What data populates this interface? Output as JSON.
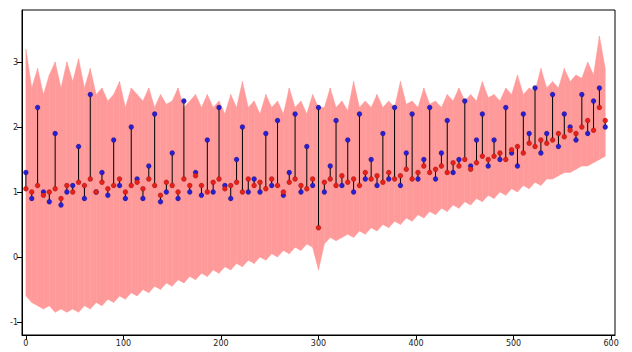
{
  "chart_data": {
    "type": "scatter",
    "x": [
      0,
      6,
      12,
      18,
      24,
      30,
      36,
      42,
      48,
      54,
      60,
      66,
      72,
      78,
      84,
      90,
      96,
      102,
      108,
      114,
      120,
      126,
      132,
      138,
      144,
      150,
      156,
      162,
      168,
      174,
      180,
      186,
      192,
      198,
      204,
      210,
      216,
      222,
      228,
      234,
      240,
      246,
      252,
      258,
      264,
      270,
      276,
      282,
      288,
      294,
      300,
      306,
      312,
      318,
      324,
      330,
      336,
      342,
      348,
      354,
      360,
      366,
      372,
      378,
      384,
      390,
      396,
      402,
      408,
      414,
      420,
      426,
      432,
      438,
      444,
      450,
      456,
      462,
      468,
      474,
      480,
      486,
      492,
      498,
      504,
      510,
      516,
      522,
      528,
      534,
      540,
      546,
      552,
      558,
      564,
      570,
      576,
      582,
      588,
      594
    ],
    "xlim": [
      -4,
      604
    ],
    "xticks": [
      0,
      100,
      200,
      300,
      400,
      500,
      600
    ],
    "ylim": [
      -1.2,
      3.8
    ],
    "yticks": [
      -1,
      0,
      1,
      2,
      3
    ],
    "grid": false,
    "series": [
      {
        "type": "band",
        "color": "#ff9a9a",
        "lower": [
          -0.6,
          -0.7,
          -0.75,
          -0.8,
          -0.75,
          -0.85,
          -0.8,
          -0.85,
          -0.8,
          -0.85,
          -0.75,
          -0.8,
          -0.7,
          -0.75,
          -0.65,
          -0.7,
          -0.6,
          -0.65,
          -0.55,
          -0.6,
          -0.5,
          -0.55,
          -0.45,
          -0.5,
          -0.4,
          -0.45,
          -0.35,
          -0.4,
          -0.3,
          -0.35,
          -0.25,
          -0.3,
          -0.2,
          -0.25,
          -0.15,
          -0.2,
          -0.1,
          -0.15,
          -0.05,
          -0.1,
          0.0,
          -0.05,
          0.05,
          0.0,
          0.1,
          0.05,
          0.15,
          0.1,
          0.2,
          0.15,
          -0.2,
          0.2,
          0.3,
          0.25,
          0.3,
          0.35,
          0.3,
          0.4,
          0.35,
          0.45,
          0.4,
          0.5,
          0.45,
          0.55,
          0.5,
          0.6,
          0.55,
          0.65,
          0.6,
          0.7,
          0.65,
          0.75,
          0.7,
          0.8,
          0.75,
          0.85,
          0.8,
          0.9,
          0.85,
          0.95,
          0.9,
          1.0,
          0.95,
          1.05,
          1.0,
          1.1,
          1.05,
          1.15,
          1.1,
          1.2,
          1.2,
          1.25,
          1.3,
          1.3,
          1.35,
          1.4,
          1.4,
          1.45,
          1.5,
          1.55
        ],
        "upper": [
          3.2,
          2.6,
          2.9,
          2.5,
          2.8,
          3.0,
          2.6,
          3.0,
          2.7,
          3.05,
          2.6,
          2.9,
          2.5,
          2.6,
          2.4,
          2.5,
          2.7,
          2.3,
          2.6,
          2.5,
          2.4,
          2.6,
          2.3,
          2.5,
          2.35,
          2.4,
          2.6,
          2.3,
          2.4,
          2.5,
          2.3,
          2.5,
          2.3,
          2.4,
          2.2,
          2.5,
          2.3,
          2.7,
          2.3,
          2.4,
          2.2,
          2.5,
          2.3,
          2.4,
          2.2,
          2.6,
          2.3,
          2.4,
          2.2,
          2.5,
          2.3,
          2.3,
          2.6,
          2.3,
          2.4,
          2.25,
          2.7,
          2.3,
          2.4,
          2.3,
          2.5,
          2.3,
          2.4,
          2.3,
          2.7,
          2.35,
          2.4,
          2.3,
          2.6,
          2.35,
          2.4,
          2.3,
          2.5,
          2.4,
          2.6,
          2.4,
          2.5,
          2.4,
          2.7,
          2.45,
          2.5,
          2.4,
          2.6,
          2.5,
          2.8,
          2.5,
          2.6,
          2.55,
          2.9,
          2.6,
          2.7,
          2.6,
          2.9,
          2.7,
          2.8,
          2.75,
          3.0,
          2.8,
          3.4,
          2.9
        ]
      },
      {
        "type": "scatter",
        "color": "#2a1fd0",
        "marker": "circle",
        "values": [
          1.3,
          0.9,
          2.3,
          1.0,
          0.85,
          1.9,
          0.8,
          1.0,
          1.1,
          1.7,
          0.9,
          2.5,
          1.0,
          1.3,
          0.95,
          1.8,
          1.1,
          0.9,
          2.0,
          1.2,
          0.9,
          1.4,
          2.2,
          0.85,
          1.0,
          1.6,
          0.9,
          2.4,
          1.0,
          1.3,
          0.95,
          1.8,
          1.0,
          2.3,
          1.1,
          0.9,
          1.5,
          2.0,
          1.0,
          1.2,
          1.0,
          1.9,
          1.1,
          2.1,
          0.95,
          1.3,
          2.2,
          1.0,
          1.7,
          1.1,
          2.3,
          1.0,
          1.4,
          2.1,
          1.1,
          1.8,
          1.0,
          2.2,
          1.2,
          1.5,
          1.1,
          1.9,
          1.2,
          2.3,
          1.1,
          1.6,
          2.2,
          1.2,
          1.5,
          2.3,
          1.2,
          1.6,
          2.1,
          1.3,
          1.5,
          2.4,
          1.4,
          1.8,
          2.2,
          1.4,
          1.8,
          1.5,
          2.3,
          1.6,
          1.4,
          2.2,
          1.9,
          2.6,
          1.6,
          1.9,
          2.5,
          1.7,
          2.2,
          2.0,
          1.8,
          2.5,
          1.9,
          2.4,
          2.6,
          2.0
        ]
      },
      {
        "type": "scatter",
        "color": "#e8201a",
        "marker": "circle",
        "values": [
          1.05,
          1.0,
          1.1,
          0.95,
          1.0,
          1.05,
          0.9,
          1.1,
          1.0,
          1.15,
          1.1,
          1.2,
          1.0,
          1.15,
          1.05,
          1.1,
          1.2,
          1.0,
          1.1,
          1.15,
          1.05,
          1.2,
          1.1,
          0.95,
          1.15,
          1.1,
          1.0,
          1.2,
          1.1,
          1.25,
          1.1,
          1.0,
          1.15,
          1.2,
          1.05,
          1.1,
          1.15,
          1.0,
          1.2,
          1.1,
          1.15,
          1.05,
          1.2,
          1.1,
          1.0,
          1.15,
          1.2,
          1.1,
          1.05,
          1.2,
          0.45,
          1.15,
          1.2,
          1.1,
          1.25,
          1.15,
          1.2,
          1.1,
          1.3,
          1.2,
          1.25,
          1.15,
          1.3,
          1.2,
          1.25,
          1.35,
          1.2,
          1.3,
          1.4,
          1.3,
          1.35,
          1.4,
          1.3,
          1.45,
          1.4,
          1.5,
          1.35,
          1.45,
          1.55,
          1.5,
          1.55,
          1.6,
          1.5,
          1.65,
          1.7,
          1.6,
          1.75,
          1.7,
          1.8,
          1.75,
          1.8,
          1.9,
          1.85,
          1.95,
          1.9,
          2.0,
          2.1,
          1.95,
          2.3,
          2.1
        ]
      }
    ]
  }
}
